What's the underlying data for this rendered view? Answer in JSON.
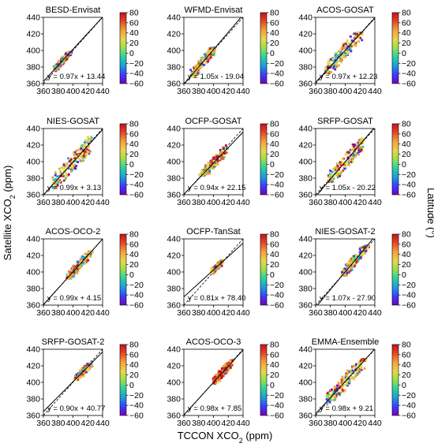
{
  "figure": {
    "xlabel": "TCCON XCO",
    "xlabel_sub": "2",
    "xlabel_unit": " (ppm)",
    "ylabel": "Satellite XCO",
    "ylabel_sub": "2",
    "ylabel_unit": " (ppm)",
    "colorbar_label": "Latitude (°)"
  },
  "chart_data": [
    {
      "type": "scatter",
      "title": "BESD-Envisat",
      "equation": "y = 0.97x + 13.44",
      "slope": 0.97,
      "intercept": 13.44,
      "xlim": [
        360,
        440
      ],
      "ylim": [
        360,
        440
      ],
      "xticks": [
        360,
        380,
        400,
        420,
        440
      ],
      "yticks": [
        360,
        380,
        400,
        420,
        440
      ],
      "cluster": {
        "x": [
          375,
          398
        ],
        "y": [
          375,
          398
        ],
        "lat": "mixed"
      },
      "colorbar": {
        "ticks": [
          80,
          60,
          40,
          20,
          0,
          -20,
          -40,
          -60
        ]
      }
    },
    {
      "type": "scatter",
      "title": "WFMD-Envisat",
      "equation": "y = 1.05x - 19.04",
      "slope": 1.05,
      "intercept": -19.04,
      "xlim": [
        360,
        440
      ],
      "ylim": [
        360,
        440
      ],
      "xticks": [
        360,
        380,
        400,
        420,
        440
      ],
      "yticks": [
        360,
        380,
        400,
        420,
        440
      ],
      "cluster": {
        "x": [
          370,
          402
        ],
        "y": [
          368,
          404
        ],
        "lat": "mixed"
      },
      "colorbar": {
        "ticks": [
          80,
          60,
          40,
          20,
          0,
          -20,
          -40,
          -60
        ]
      }
    },
    {
      "type": "scatter",
      "title": "ACOS-GOSAT",
      "equation": "y = 0.97x + 12.23",
      "slope": 0.97,
      "intercept": 12.23,
      "xlim": [
        360,
        440
      ],
      "ylim": [
        360,
        440
      ],
      "xticks": [
        360,
        380,
        400,
        420,
        440
      ],
      "yticks": [
        360,
        380,
        400,
        420,
        440
      ],
      "cluster": {
        "x": [
          373,
          422
        ],
        "y": [
          372,
          422
        ],
        "lat": "mixed"
      },
      "colorbar": {
        "ticks": [
          80,
          60,
          40,
          20,
          0,
          -20,
          -40,
          -60
        ]
      }
    },
    {
      "type": "scatter",
      "title": "NIES-GOSAT",
      "equation": "y = 0.99x + 3.13",
      "slope": 0.99,
      "intercept": 3.13,
      "xlim": [
        360,
        440
      ],
      "ylim": [
        360,
        440
      ],
      "xticks": [
        360,
        380,
        400,
        420,
        440
      ],
      "yticks": [
        360,
        380,
        400,
        420,
        440
      ],
      "cluster": {
        "x": [
          372,
          425
        ],
        "y": [
          368,
          430
        ],
        "lat": "mixed"
      },
      "colorbar": {
        "ticks": [
          80,
          60,
          40,
          20,
          0,
          -20,
          -40,
          -60
        ]
      }
    },
    {
      "type": "scatter",
      "title": "OCFP-GOSAT",
      "equation": "y = 0.94x + 22.15",
      "slope": 0.94,
      "intercept": 22.15,
      "xlim": [
        360,
        440
      ],
      "ylim": [
        360,
        440
      ],
      "xticks": [
        360,
        380,
        400,
        420,
        440
      ],
      "yticks": [
        360,
        380,
        400,
        420,
        440
      ],
      "cluster": {
        "x": [
          382,
          418
        ],
        "y": [
          383,
          420
        ],
        "lat": "mixed"
      },
      "colorbar": {
        "ticks": [
          80,
          60,
          40,
          20,
          0,
          -20,
          -40,
          -60
        ]
      }
    },
    {
      "type": "scatter",
      "title": "SRFP-GOSAT",
      "equation": "y = 1.05x - 20.22",
      "slope": 1.05,
      "intercept": -20.22,
      "xlim": [
        360,
        440
      ],
      "ylim": [
        360,
        440
      ],
      "xticks": [
        360,
        380,
        400,
        420,
        440
      ],
      "yticks": [
        360,
        380,
        400,
        420,
        440
      ],
      "cluster": {
        "x": [
          377,
          425
        ],
        "y": [
          375,
          428
        ],
        "lat": "mixed"
      },
      "colorbar": {
        "ticks": [
          80,
          60,
          40,
          20,
          0,
          -20,
          -40,
          -60
        ]
      }
    },
    {
      "type": "scatter",
      "title": "ACOS-OCO-2",
      "equation": "y = 0.99x + 4.15",
      "slope": 0.99,
      "intercept": 4.15,
      "xlim": [
        360,
        440
      ],
      "ylim": [
        360,
        440
      ],
      "xticks": [
        360,
        380,
        400,
        420,
        440
      ],
      "yticks": [
        360,
        380,
        400,
        420,
        440
      ],
      "cluster": {
        "x": [
          392,
          425
        ],
        "y": [
          392,
          425
        ],
        "lat": "mixed"
      },
      "colorbar": {
        "ticks": [
          80,
          60,
          40,
          20,
          0,
          -20,
          -40,
          -60
        ]
      }
    },
    {
      "type": "scatter",
      "title": "OCFP-TanSat",
      "equation": "y = 0.81x + 78.40",
      "slope": 0.81,
      "intercept": 78.4,
      "xlim": [
        360,
        440
      ],
      "ylim": [
        360,
        440
      ],
      "xticks": [
        360,
        380,
        400,
        420,
        440
      ],
      "yticks": [
        360,
        380,
        400,
        420,
        440
      ],
      "cluster": {
        "x": [
          398,
          412
        ],
        "y": [
          397,
          415
        ],
        "lat": "mixed"
      },
      "colorbar": {
        "ticks": [
          80,
          60,
          40,
          20,
          0,
          -20,
          -40,
          -60
        ]
      }
    },
    {
      "type": "scatter",
      "title": "NIES-GOSAT-2",
      "equation": "y = 1.07x - 27.90",
      "slope": 1.07,
      "intercept": -27.9,
      "xlim": [
        360,
        440
      ],
      "ylim": [
        360,
        440
      ],
      "xticks": [
        360,
        380,
        400,
        420,
        440
      ],
      "yticks": [
        360,
        380,
        400,
        420,
        440
      ],
      "cluster": {
        "x": [
          396,
          432
        ],
        "y": [
          395,
          432
        ],
        "lat": "mixed"
      },
      "colorbar": {
        "ticks": [
          80,
          60,
          40,
          20,
          0,
          -20,
          -40,
          -60
        ]
      }
    },
    {
      "type": "scatter",
      "title": "SRFP-GOSAT-2",
      "equation": "y = 0.90x + 40.77",
      "slope": 0.9,
      "intercept": 40.77,
      "xlim": [
        360,
        440
      ],
      "ylim": [
        360,
        440
      ],
      "xticks": [
        360,
        380,
        400,
        420,
        440
      ],
      "yticks": [
        360,
        380,
        400,
        420,
        440
      ],
      "cluster": {
        "x": [
          403,
          425
        ],
        "y": [
          403,
          427
        ],
        "lat": "mixed"
      },
      "colorbar": {
        "ticks": [
          80,
          60,
          40,
          20,
          0,
          -20,
          -40,
          -60
        ]
      }
    },
    {
      "type": "scatter",
      "title": "ACOS-OCO-3",
      "equation": "y = 0.98x + 7.85",
      "slope": 0.98,
      "intercept": 7.85,
      "xlim": [
        360,
        440
      ],
      "ylim": [
        360,
        440
      ],
      "xticks": [
        360,
        380,
        400,
        420,
        440
      ],
      "yticks": [
        360,
        380,
        400,
        420,
        440
      ],
      "cluster": {
        "x": [
          400,
          425
        ],
        "y": [
          398,
          428
        ],
        "lat": "mostly-north"
      },
      "colorbar": {
        "ticks": [
          80,
          60,
          40,
          20,
          0,
          -20,
          -40,
          -60
        ]
      }
    },
    {
      "type": "scatter",
      "title": "EMMA-Ensemble",
      "equation": "y = 0.98x + 9.21",
      "slope": 0.98,
      "intercept": 9.21,
      "xlim": [
        360,
        440
      ],
      "ylim": [
        360,
        440
      ],
      "xticks": [
        360,
        380,
        400,
        420,
        440
      ],
      "yticks": [
        360,
        380,
        400,
        420,
        440
      ],
      "cluster": {
        "x": [
          375,
          428
        ],
        "y": [
          373,
          428
        ],
        "lat": "mixed"
      },
      "colorbar": {
        "ticks": [
          80,
          60,
          40,
          20,
          0,
          -20,
          -40,
          -60
        ]
      }
    }
  ],
  "colors": {
    "scale": [
      "#7a00b8",
      "#3a3aff",
      "#1e9dd8",
      "#2ed1a0",
      "#9adf4a",
      "#e8d64a",
      "#f3a23a",
      "#e2452a",
      "#c2141c"
    ]
  }
}
